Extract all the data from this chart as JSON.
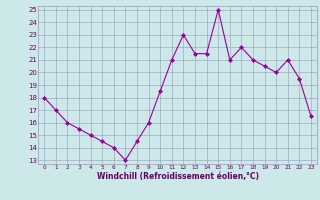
{
  "x": [
    0,
    1,
    2,
    3,
    4,
    5,
    6,
    7,
    8,
    9,
    10,
    11,
    12,
    13,
    14,
    15,
    16,
    17,
    18,
    19,
    20,
    21,
    22,
    23
  ],
  "y": [
    18,
    17,
    16,
    15.5,
    15,
    14.5,
    14,
    13,
    14.5,
    16,
    18.5,
    21,
    23,
    21.5,
    21.5,
    25,
    21,
    22,
    21,
    20.5,
    20,
    21,
    19.5,
    16.5
  ],
  "line_color": "#990099",
  "marker": "D",
  "marker_size": 2,
  "bg_color": "#cce8e8",
  "grid_color": "#9999bb",
  "xlabel": "Windchill (Refroidissement éolien,°C)",
  "xlabel_color": "#660066",
  "tick_color": "#660066",
  "ylim": [
    13,
    25
  ],
  "xlim": [
    -0.5,
    23.5
  ],
  "yticks": [
    13,
    14,
    15,
    16,
    17,
    18,
    19,
    20,
    21,
    22,
    23,
    24,
    25
  ],
  "xticks": [
    0,
    1,
    2,
    3,
    4,
    5,
    6,
    7,
    8,
    9,
    10,
    11,
    12,
    13,
    14,
    15,
    16,
    17,
    18,
    19,
    20,
    21,
    22,
    23
  ]
}
